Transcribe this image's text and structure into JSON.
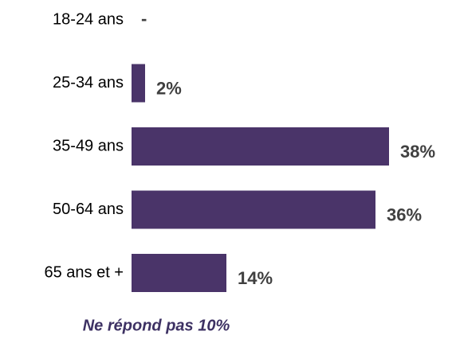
{
  "chart_data": {
    "type": "hbar",
    "categories": [
      "18-24 ans",
      "25-34 ans",
      "35-49 ans",
      "50-64 ans",
      "65 ans et +"
    ],
    "values": [
      null,
      2,
      38,
      36,
      14
    ],
    "value_labels": [
      "-",
      "2%",
      "38%",
      "36%",
      "14%"
    ],
    "color": "#4a3469",
    "footnote": "Ne répond pas 10%"
  }
}
